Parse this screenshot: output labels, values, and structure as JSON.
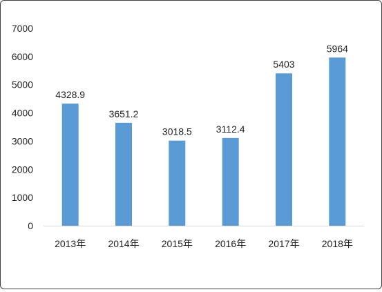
{
  "chart_data": {
    "type": "bar",
    "categories": [
      "2013年",
      "2014年",
      "2015年",
      "2016年",
      "2017年",
      "2018年"
    ],
    "values": [
      4328.9,
      3651.2,
      3018.5,
      3112.4,
      5403,
      5964
    ],
    "data_labels": [
      "4328.9",
      "3651.2",
      "3018.5",
      "3112.4",
      "5403",
      "5964"
    ],
    "y_ticks": [
      "0",
      "1000",
      "2000",
      "3000",
      "4000",
      "5000",
      "6000",
      "7000"
    ],
    "ylim": [
      0,
      7000
    ],
    "grid": false,
    "legend": "none",
    "title": "",
    "xlabel": "",
    "ylabel": "",
    "bar_color": "#5b9bd5"
  }
}
